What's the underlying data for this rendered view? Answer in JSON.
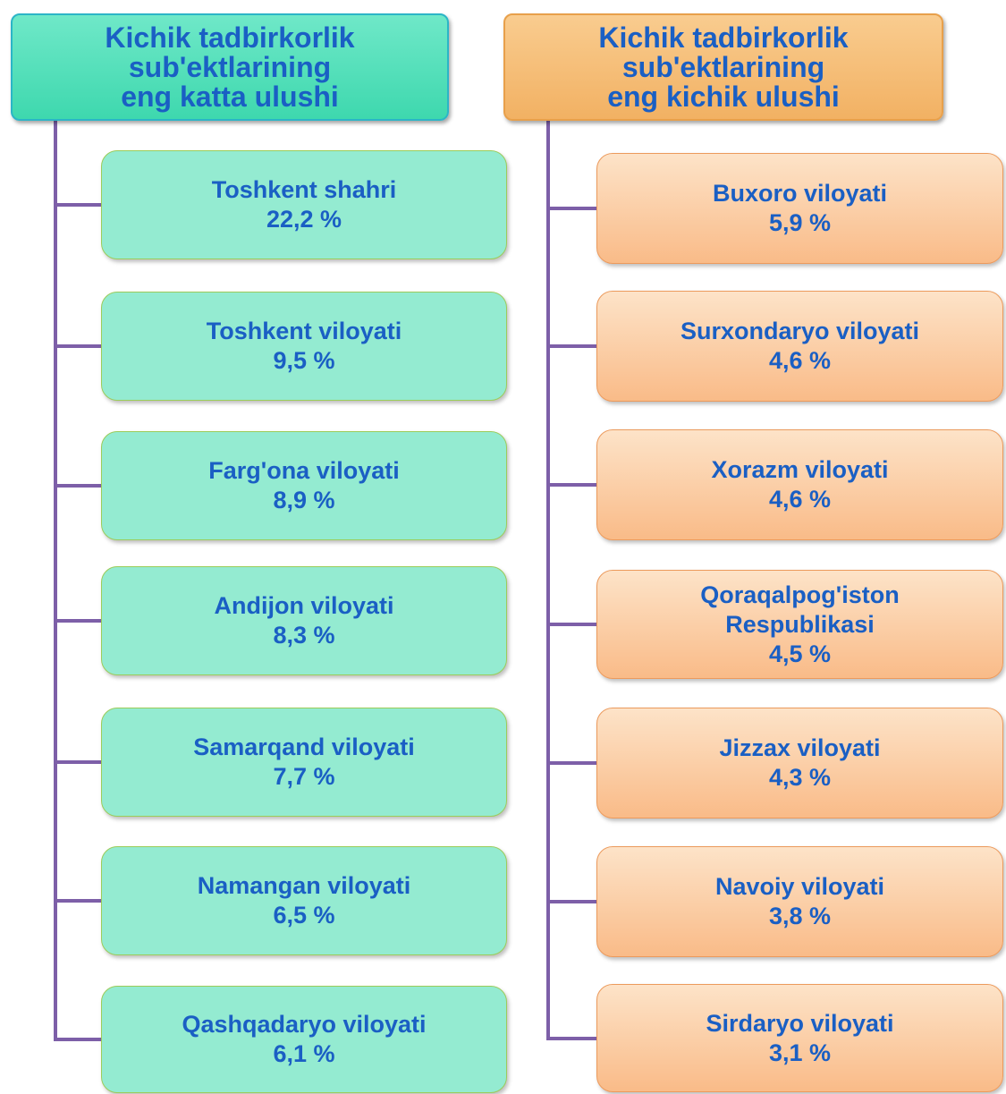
{
  "columns": [
    {
      "header": {
        "title": [
          "Kichik tadbirkorlik",
          "sub'ektlarining",
          "eng katta ulushi"
        ]
      },
      "nodes": [
        {
          "label": [
            "Toshkent shahri"
          ],
          "value": "22,2 %"
        },
        {
          "label": [
            "Toshkent viloyati"
          ],
          "value": "9,5 %"
        },
        {
          "label": [
            "Farg'ona viloyati"
          ],
          "value": "8,9 %"
        },
        {
          "label": [
            "Andijon viloyati"
          ],
          "value": "8,3 %"
        },
        {
          "label": [
            "Samarqand viloyati"
          ],
          "value": "7,7 %"
        },
        {
          "label": [
            "Namangan viloyati"
          ],
          "value": "6,5 %"
        },
        {
          "label": [
            "Qashqadaryo viloyati"
          ],
          "value": "6,1 %"
        }
      ]
    },
    {
      "header": {
        "title": [
          "Kichik tadbirkorlik",
          "sub'ektlarining",
          "eng kichik ulushi"
        ]
      },
      "nodes": [
        {
          "label": [
            "Buxoro viloyati"
          ],
          "value": "5,9 %"
        },
        {
          "label": [
            "Surxondaryo viloyati"
          ],
          "value": "4,6 %"
        },
        {
          "label": [
            "Xorazm  viloyati"
          ],
          "value": "4,6 %"
        },
        {
          "label": [
            "Qoraqalpog'iston",
            "Respublikasi"
          ],
          "value": "4,5 %"
        },
        {
          "label": [
            "Jizzax viloyati"
          ],
          "value": "4,3 %"
        },
        {
          "label": [
            "Navoiy viloyati"
          ],
          "value": "3,8 %"
        },
        {
          "label": [
            "Sirdaryo viloyati"
          ],
          "value": "3,1 %"
        }
      ]
    }
  ]
}
